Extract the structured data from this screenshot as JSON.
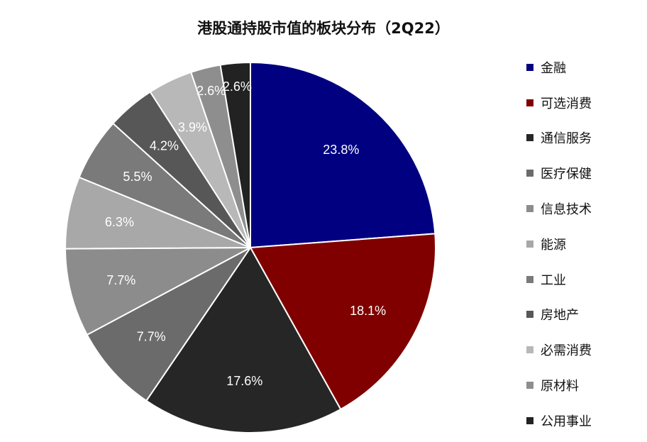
{
  "chart_data": {
    "type": "pie",
    "title": "港股通持股市值的板块分布（2Q22）",
    "legend_position": "right",
    "series": [
      {
        "name": "金融",
        "value": 23.8,
        "label": "23.8%",
        "color": "#000080",
        "label_color": "#ffffff"
      },
      {
        "name": "可选消费",
        "value": 18.1,
        "label": "18.1%",
        "color": "#800000",
        "label_color": "#ffffff"
      },
      {
        "name": "通信服务",
        "value": 17.6,
        "label": "17.6%",
        "color": "#262626",
        "label_color": "#ffffff"
      },
      {
        "name": "医疗保健",
        "value": 7.7,
        "label": "7.7%",
        "color": "#6b6b6b",
        "label_color": "#ffffff"
      },
      {
        "name": "信息技术",
        "value": 7.7,
        "label": "7.7%",
        "color": "#8c8c8c",
        "label_color": "#ffffff"
      },
      {
        "name": "能源",
        "value": 6.3,
        "label": "6.3%",
        "color": "#a8a8a8",
        "label_color": "#ffffff"
      },
      {
        "name": "工业",
        "value": 5.5,
        "label": "5.5%",
        "color": "#7a7a7a",
        "label_color": "#ffffff"
      },
      {
        "name": "房地产",
        "value": 4.2,
        "label": "4.2%",
        "color": "#575757",
        "label_color": "#ffffff"
      },
      {
        "name": "必需消费",
        "value": 3.9,
        "label": "3.9%",
        "color": "#b8b8b8",
        "label_color": "#ffffff"
      },
      {
        "name": "原材料",
        "value": 2.6,
        "label": "2.6%",
        "color": "#8e8e8e",
        "label_color": "#ffffff"
      },
      {
        "name": "公用事业",
        "value": 2.6,
        "label": "2.6%",
        "color": "#222222",
        "label_color": "#ffffff"
      }
    ]
  }
}
